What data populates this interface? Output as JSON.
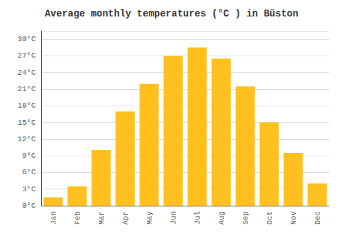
{
  "chart_data": {
    "type": "bar",
    "title": "Average monthly temperatures (°C ) in Bŭston",
    "categories": [
      "Jan",
      "Feb",
      "Mar",
      "Apr",
      "May",
      "Jun",
      "Jul",
      "Aug",
      "Sep",
      "Oct",
      "Nov",
      "Dec"
    ],
    "values": [
      1.5,
      3.5,
      10.0,
      17.0,
      22.0,
      27.0,
      28.5,
      26.5,
      21.5,
      15.0,
      9.5,
      4.0
    ],
    "color": "#FFC020",
    "ylim": [
      0,
      31.5
    ],
    "yticks": [
      {
        "value": 0,
        "label": "0°C"
      },
      {
        "value": 3,
        "label": "3°C"
      },
      {
        "value": 6,
        "label": "6°C"
      },
      {
        "value": 9,
        "label": "9°C"
      },
      {
        "value": 12,
        "label": "12°C"
      },
      {
        "value": 15,
        "label": "15°C"
      },
      {
        "value": 18,
        "label": "18°C"
      },
      {
        "value": 21,
        "label": "21°C"
      },
      {
        "value": 24,
        "label": "24°C"
      },
      {
        "value": 27,
        "label": "27°C"
      },
      {
        "value": 30,
        "label": "30°C"
      }
    ],
    "grid": true
  }
}
